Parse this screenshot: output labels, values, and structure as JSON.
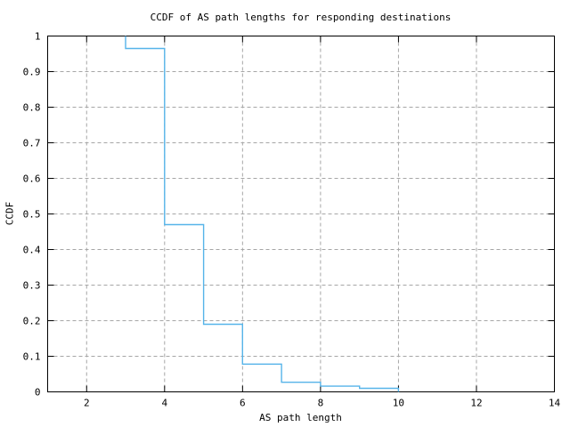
{
  "chart_data": {
    "type": "line",
    "subtype": "step-ccdf",
    "title": "CCDF of AS path lengths for responding destinations",
    "xlabel": "AS path length",
    "ylabel": "CCDF",
    "xlim": [
      1,
      14
    ],
    "ylim": [
      0,
      1
    ],
    "x_ticks": [
      {
        "value": 2,
        "label": "2"
      },
      {
        "value": 4,
        "label": "4"
      },
      {
        "value": 6,
        "label": "6"
      },
      {
        "value": 8,
        "label": "8"
      },
      {
        "value": 10,
        "label": "10"
      },
      {
        "value": 12,
        "label": "12"
      },
      {
        "value": 14,
        "label": "14"
      }
    ],
    "y_ticks": [
      {
        "value": 0,
        "label": "0"
      },
      {
        "value": 0.1,
        "label": "0.1"
      },
      {
        "value": 0.2,
        "label": "0.2"
      },
      {
        "value": 0.3,
        "label": "0.3"
      },
      {
        "value": 0.4,
        "label": "0.4"
      },
      {
        "value": 0.5,
        "label": "0.5"
      },
      {
        "value": 0.6,
        "label": "0.6"
      },
      {
        "value": 0.7,
        "label": "0.7"
      },
      {
        "value": 0.8,
        "label": "0.8"
      },
      {
        "value": 0.9,
        "label": "0.9"
      },
      {
        "value": 1,
        "label": "1"
      }
    ],
    "grid": true,
    "legend": "none",
    "colors": {
      "line": "#56b4e9",
      "grid": "#a6a6a6",
      "axis": "#000000",
      "background": "#ffffff"
    },
    "series": [
      {
        "name": "ccdf-of-as-path-length",
        "style": "steps",
        "points": [
          [
            3,
            1.0
          ],
          [
            3,
            0.965
          ],
          [
            4,
            0.965
          ],
          [
            4,
            0.47
          ],
          [
            5,
            0.47
          ],
          [
            5,
            0.19
          ],
          [
            6,
            0.19
          ],
          [
            6,
            0.078
          ],
          [
            7,
            0.078
          ],
          [
            7,
            0.027
          ],
          [
            8,
            0.027
          ],
          [
            8,
            0.016
          ],
          [
            9,
            0.016
          ],
          [
            9,
            0.01
          ],
          [
            10,
            0.01
          ],
          [
            10,
            0.0
          ]
        ]
      }
    ]
  }
}
